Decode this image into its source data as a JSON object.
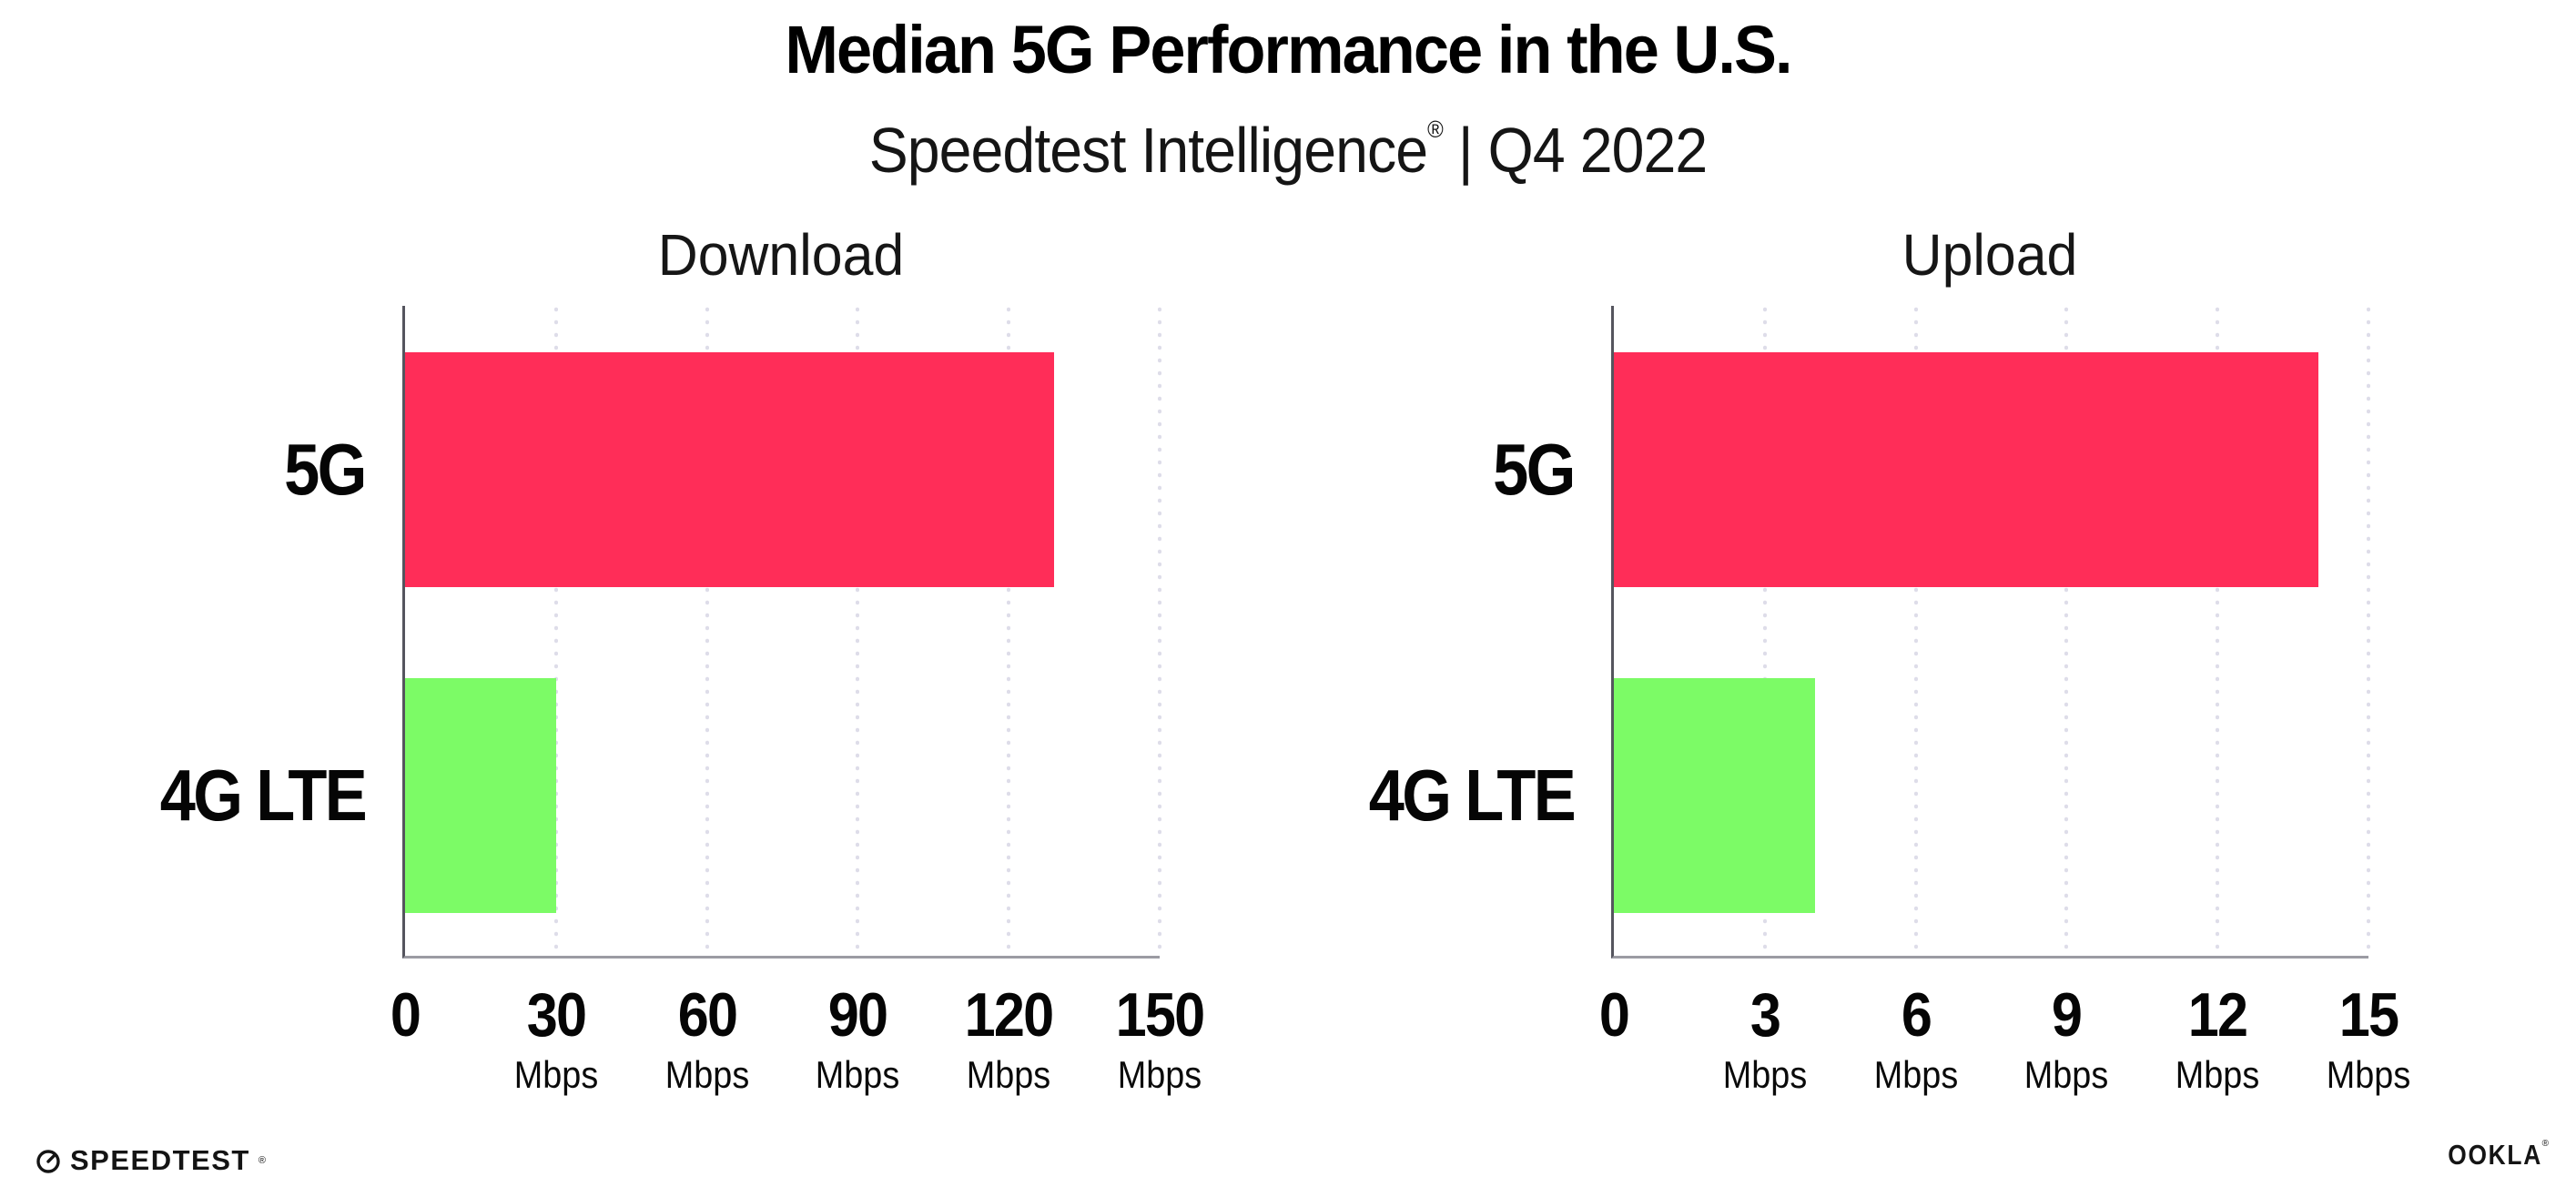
{
  "header": {
    "title": "Median 5G Performance in the U.S.",
    "subtitle_brand": "Speedtest Intelligence",
    "subtitle_reg": "®",
    "subtitle_rest": " | Q4 2022"
  },
  "footer": {
    "speedtest_wordmark": "SPEEDTEST",
    "speedtest_reg": "®",
    "speedtest_icon": "speedometer-gauge-icon",
    "ookla_wordmark": "OOKLA",
    "ookla_reg": "®"
  },
  "colors": {
    "bar_5g": "#ff2d58",
    "bar_4g_lte": "#7cfb66",
    "axis_y": "#55555e",
    "axis_x": "#9b9ba3",
    "gridline": "#dedde9",
    "text": "#0d0d0d"
  },
  "chart_data": [
    {
      "type": "bar",
      "orientation": "horizontal",
      "title": "Download",
      "categories": [
        "5G",
        "4G LTE"
      ],
      "values": [
        129,
        30
      ],
      "unit": "Mbps",
      "xlabel": "",
      "ylabel": "",
      "xlim": [
        0,
        150
      ],
      "xticks": [
        0,
        30,
        60,
        90,
        120,
        150
      ],
      "grid": "dotted-vertical",
      "legend": "none",
      "bar_colors": [
        "#ff2d58",
        "#7cfb66"
      ]
    },
    {
      "type": "bar",
      "orientation": "horizontal",
      "title": "Upload",
      "categories": [
        "5G",
        "4G LTE"
      ],
      "values": [
        14,
        4
      ],
      "unit": "Mbps",
      "xlabel": "",
      "ylabel": "",
      "xlim": [
        0,
        15
      ],
      "xticks": [
        0,
        3,
        6,
        9,
        12,
        15
      ],
      "grid": "dotted-vertical",
      "legend": "none",
      "bar_colors": [
        "#ff2d58",
        "#7cfb66"
      ]
    }
  ]
}
